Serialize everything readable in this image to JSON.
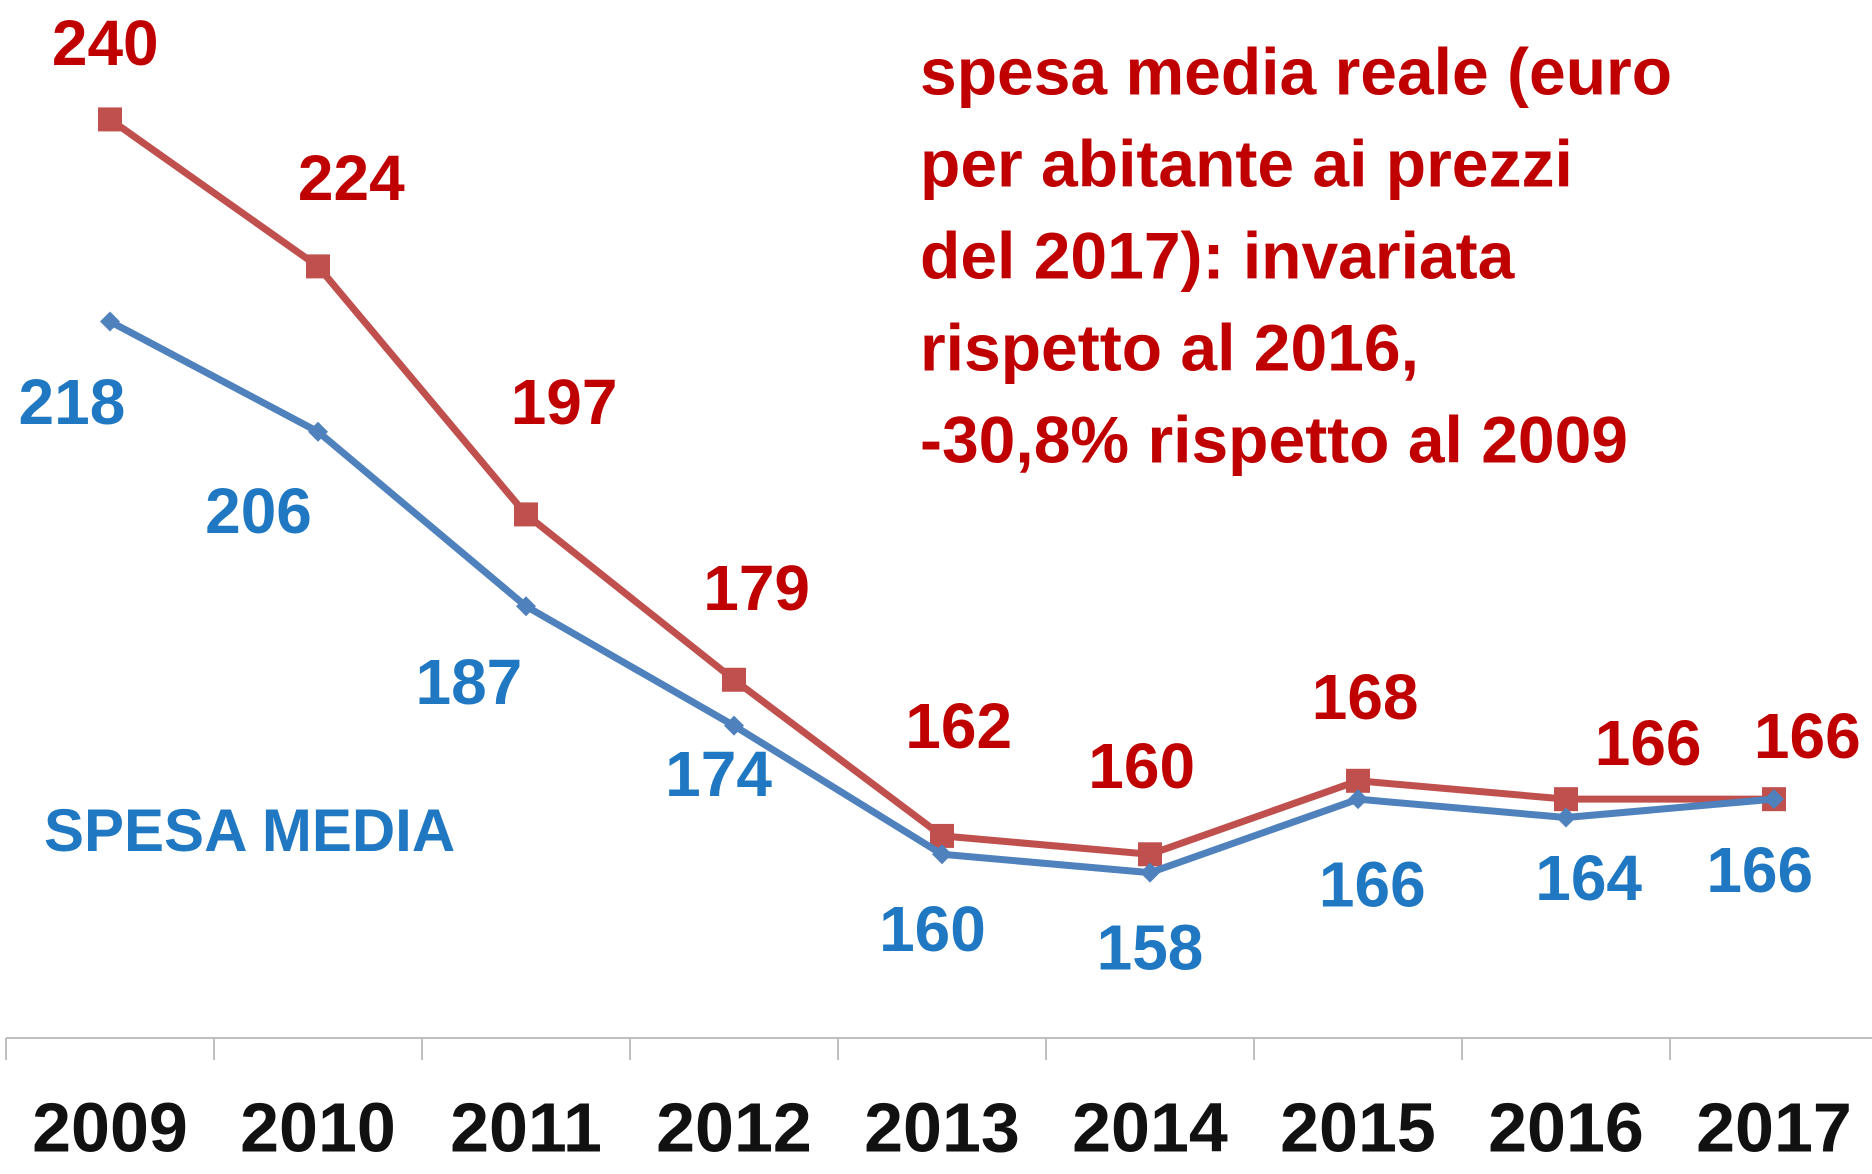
{
  "chart_data": {
    "type": "line",
    "annotation": [
      "spesa media reale (euro",
      "per abitante ai prezzi",
      "del 2017): invariata",
      "rispetto al 2016,",
      "-30,8% rispetto al 2009"
    ],
    "categories": [
      "2009",
      "2010",
      "2011",
      "2012",
      "2013",
      "2014",
      "2015",
      "2016",
      "2017"
    ],
    "series": [
      {
        "color": "#c0504d",
        "label_color": "#c00000",
        "marker": "square",
        "values": [
          240,
          224,
          197,
          179,
          162,
          160,
          168,
          166,
          166
        ]
      },
      {
        "name": "SPESA MEDIA",
        "color": "#4f81bd",
        "label_color": "#1f78c1",
        "marker": "diamond",
        "values": [
          218,
          206,
          187,
          174,
          160,
          158,
          166,
          164,
          166
        ]
      }
    ],
    "ylim": [
      140,
      253
    ],
    "grid": false
  }
}
